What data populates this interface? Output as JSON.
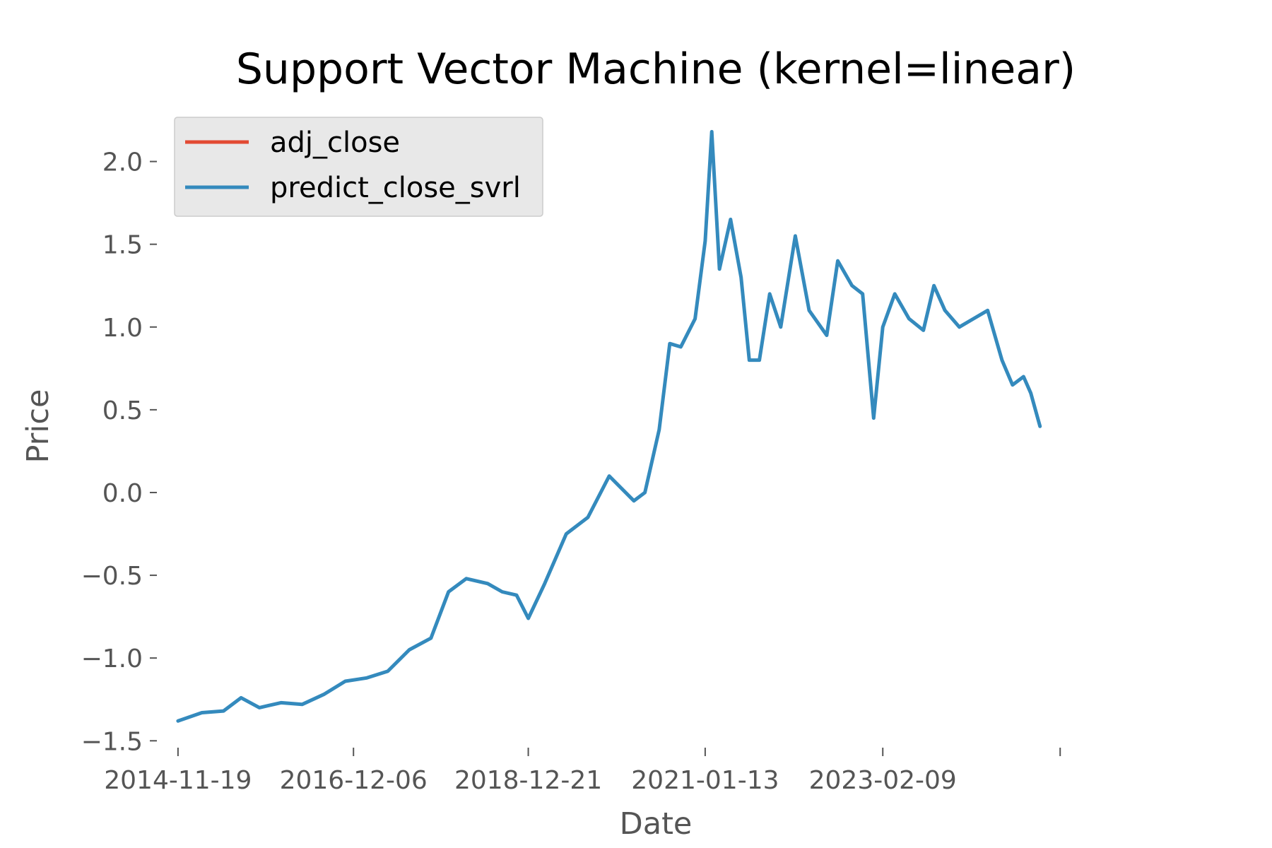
{
  "chart_data": {
    "type": "line",
    "title": "Support Vector Machine (kernel=linear)",
    "xlabel": "Date",
    "ylabel": "Price",
    "xlim": [
      "2014-08-15",
      "2026-05-01"
    ],
    "ylim": [
      -1.55,
      2.25
    ],
    "x_ticks": [
      "2014-11-19",
      "2016-12-06",
      "2018-12-21",
      "2021-01-13",
      "2023-02-09",
      "2025-03-06"
    ],
    "x_tick_labels": [
      "2014-11-19",
      "2016-12-06",
      "2018-12-21",
      "2021-01-13",
      "2023-02-09",
      ""
    ],
    "y_ticks": [
      -1.5,
      -1.0,
      -0.5,
      0.0,
      0.5,
      1.0,
      1.5,
      2.0
    ],
    "y_tick_labels": [
      "−1.5",
      "−1.0",
      "−0.5",
      "0.0",
      "0.5",
      "1.0",
      "1.5",
      "2.0"
    ],
    "grid": false,
    "legend_position": "top-left",
    "colors": {
      "adj_close": "#E24A33",
      "predict_close_svrl": "#348ABD"
    },
    "series": [
      {
        "name": "adj_close",
        "x": [
          "2014-11-19",
          "2015-03-01",
          "2015-06-01",
          "2015-08-15",
          "2015-11-01",
          "2016-02-01",
          "2016-05-01",
          "2016-08-01",
          "2016-11-01",
          "2017-02-01",
          "2017-05-01",
          "2017-08-01",
          "2017-11-01",
          "2018-01-15",
          "2018-04-01",
          "2018-07-01",
          "2018-09-01",
          "2018-11-01",
          "2018-12-21",
          "2019-03-01",
          "2019-06-01",
          "2019-09-01",
          "2019-12-01",
          "2020-03-15",
          "2020-05-01",
          "2020-07-01",
          "2020-08-15",
          "2020-10-01",
          "2020-12-01",
          "2021-01-13",
          "2021-02-10",
          "2021-03-15",
          "2021-05-01",
          "2021-06-15",
          "2021-07-20",
          "2021-09-01",
          "2021-10-15",
          "2021-12-01",
          "2022-02-01",
          "2022-04-01",
          "2022-06-15",
          "2022-08-01",
          "2022-10-01",
          "2022-11-15",
          "2023-01-01",
          "2023-02-09",
          "2023-04-01",
          "2023-06-01",
          "2023-08-01",
          "2023-09-15",
          "2023-11-01",
          "2024-01-01",
          "2024-03-01",
          "2024-05-01",
          "2024-07-01",
          "2024-08-15",
          "2024-10-01",
          "2024-11-01",
          "2024-12-10"
        ],
        "y": [
          -1.38,
          -1.33,
          -1.32,
          -1.24,
          -1.3,
          -1.27,
          -1.28,
          -1.22,
          -1.14,
          -1.12,
          -1.08,
          -0.95,
          -0.88,
          -0.6,
          -0.52,
          -0.55,
          -0.6,
          -0.62,
          -0.76,
          -0.55,
          -0.25,
          -0.15,
          0.1,
          -0.05,
          0.0,
          0.38,
          0.9,
          0.88,
          1.05,
          1.52,
          2.18,
          1.35,
          1.65,
          1.3,
          0.8,
          0.8,
          1.2,
          1.0,
          1.55,
          1.1,
          0.95,
          1.4,
          1.25,
          1.2,
          0.45,
          1.0,
          1.2,
          1.05,
          0.98,
          1.25,
          1.1,
          1.0,
          1.05,
          1.1,
          0.8,
          0.65,
          0.7,
          0.6,
          0.4
        ]
      },
      {
        "name": "predict_close_svrl",
        "x": [
          "2014-11-19",
          "2015-03-01",
          "2015-06-01",
          "2015-08-15",
          "2015-11-01",
          "2016-02-01",
          "2016-05-01",
          "2016-08-01",
          "2016-11-01",
          "2017-02-01",
          "2017-05-01",
          "2017-08-01",
          "2017-11-01",
          "2018-01-15",
          "2018-04-01",
          "2018-07-01",
          "2018-09-01",
          "2018-11-01",
          "2018-12-21",
          "2019-03-01",
          "2019-06-01",
          "2019-09-01",
          "2019-12-01",
          "2020-03-15",
          "2020-05-01",
          "2020-07-01",
          "2020-08-15",
          "2020-10-01",
          "2020-12-01",
          "2021-01-13",
          "2021-02-10",
          "2021-03-15",
          "2021-05-01",
          "2021-06-15",
          "2021-07-20",
          "2021-09-01",
          "2021-10-15",
          "2021-12-01",
          "2022-02-01",
          "2022-04-01",
          "2022-06-15",
          "2022-08-01",
          "2022-10-01",
          "2022-11-15",
          "2023-01-01",
          "2023-02-09",
          "2023-04-01",
          "2023-06-01",
          "2023-08-01",
          "2023-09-15",
          "2023-11-01",
          "2024-01-01",
          "2024-03-01",
          "2024-05-01",
          "2024-07-01",
          "2024-08-15",
          "2024-10-01",
          "2024-11-01",
          "2024-12-10"
        ],
        "y": [
          -1.38,
          -1.33,
          -1.32,
          -1.24,
          -1.3,
          -1.27,
          -1.28,
          -1.22,
          -1.14,
          -1.12,
          -1.08,
          -0.95,
          -0.88,
          -0.6,
          -0.52,
          -0.55,
          -0.6,
          -0.62,
          -0.76,
          -0.55,
          -0.25,
          -0.15,
          0.1,
          -0.05,
          0.0,
          0.38,
          0.9,
          0.88,
          1.05,
          1.52,
          2.18,
          1.35,
          1.65,
          1.3,
          0.8,
          0.8,
          1.2,
          1.0,
          1.55,
          1.1,
          0.95,
          1.4,
          1.25,
          1.2,
          0.45,
          1.0,
          1.2,
          1.05,
          0.98,
          1.25,
          1.1,
          1.0,
          1.05,
          1.1,
          0.8,
          0.65,
          0.7,
          0.6,
          0.4
        ]
      }
    ]
  }
}
